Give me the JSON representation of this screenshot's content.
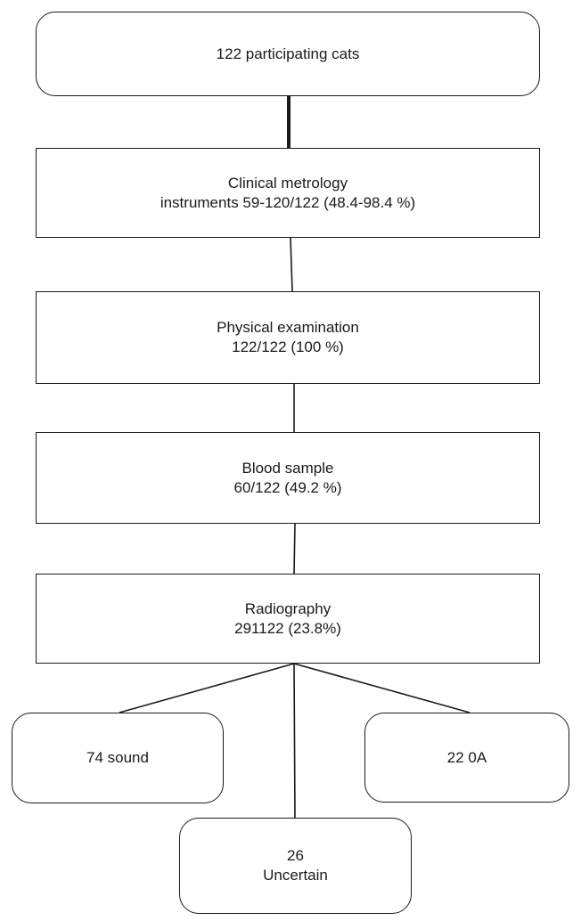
{
  "flowchart": {
    "nodes": {
      "start": {
        "line1": "122 participating cats"
      },
      "metrology": {
        "line1": "Clinical metrology",
        "line2": "instruments 59-120/122 (48.4-98.4 %)"
      },
      "physical": {
        "line1": "Physical examination",
        "line2": "122/122 (100 %)"
      },
      "blood": {
        "line1": "Blood sample",
        "line2": "60/122 (49.2 %)"
      },
      "radiography": {
        "line1": "Radiography",
        "line2": "291122 (23.8%)"
      },
      "sound": {
        "line1": "74 sound"
      },
      "oa": {
        "line1": "22 0A"
      },
      "uncertain": {
        "line1": "26",
        "line2": "Uncertain"
      }
    },
    "edges": [
      [
        "start",
        "metrology"
      ],
      [
        "metrology",
        "physical"
      ],
      [
        "physical",
        "blood"
      ],
      [
        "blood",
        "radiography"
      ],
      [
        "radiography",
        "sound"
      ],
      [
        "radiography",
        "uncertain"
      ],
      [
        "radiography",
        "oa"
      ]
    ]
  }
}
